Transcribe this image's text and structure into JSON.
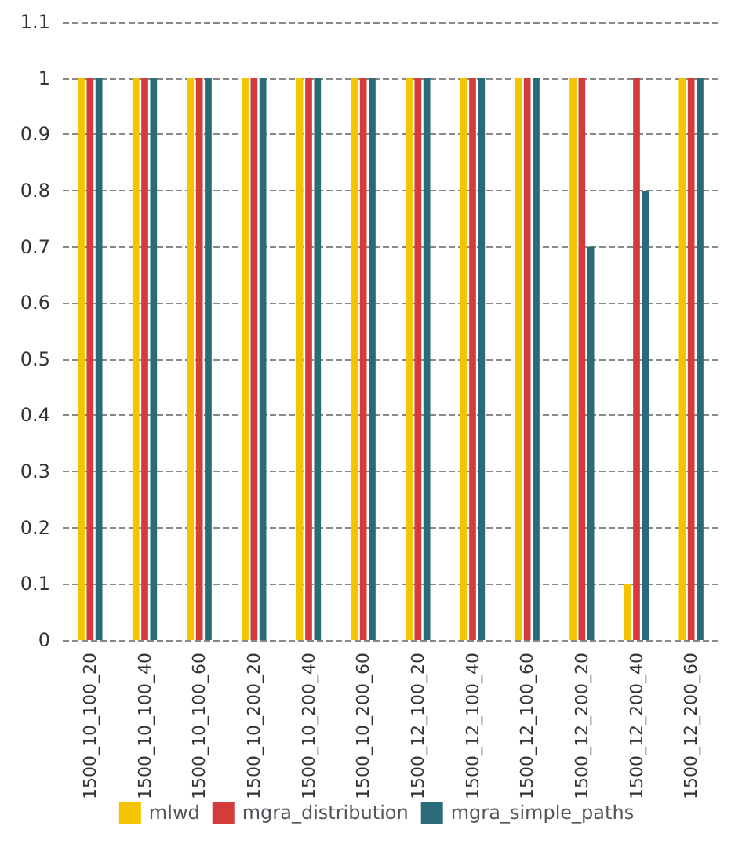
{
  "chart_data": {
    "type": "bar",
    "categories": [
      "1500_10_100_20",
      "1500_10_100_40",
      "1500_10_100_60",
      "1500_10_200_20",
      "1500_10_200_40",
      "1500_10_200_60",
      "1500_12_100_20",
      "1500_12_100_40",
      "1500_12_100_60",
      "1500_12_200_20",
      "1500_12_200_40",
      "1500_12_200_60"
    ],
    "series": [
      {
        "name": "mlwd",
        "color": "#f5c400",
        "values": [
          1,
          1,
          1,
          1,
          1,
          1,
          1,
          1,
          1,
          1,
          0.1,
          1
        ]
      },
      {
        "name": "mgra_distribution",
        "color": "#d63b3b",
        "values": [
          1,
          1,
          1,
          1,
          1,
          1,
          1,
          1,
          1,
          1,
          1,
          1
        ]
      },
      {
        "name": "mgra_simple_paths",
        "color": "#2a6b78",
        "values": [
          1,
          1,
          1,
          1,
          1,
          1,
          1,
          1,
          1,
          0.7,
          0.8,
          1
        ]
      }
    ],
    "ylim": [
      0,
      1.1
    ],
    "yticks": [
      0,
      0.1,
      0.2,
      0.3,
      0.4,
      0.5,
      0.6,
      0.7,
      0.8,
      0.9,
      1,
      1.1
    ],
    "grid": "y",
    "legend": "bottom"
  }
}
